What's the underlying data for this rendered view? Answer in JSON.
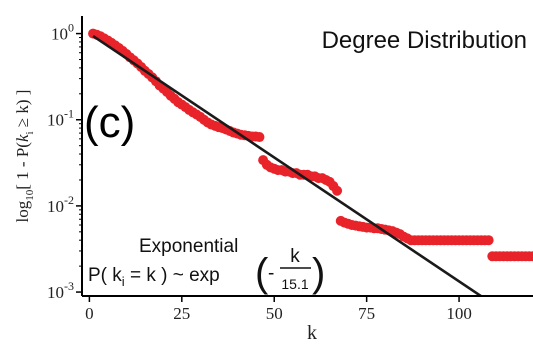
{
  "chart_data": {
    "type": "scatter",
    "title": "Degree Distribution",
    "panel_label": "(c)",
    "xlabel": "k",
    "ylabel": "log10[ 1 - P( ki ≥ k) ]",
    "ylabel_parts": {
      "log": "log",
      "log_sub": "10",
      "open": "[ 1 -  P(",
      "k": "k",
      "k_sub": "i",
      "rest": " ≥ k) ]"
    },
    "x_ticks": [
      0,
      25,
      50,
      75,
      100
    ],
    "y_ticks": [
      {
        "value": 1,
        "base": "10",
        "exp": "0"
      },
      {
        "value": 0.1,
        "base": "10",
        "exp": "-1"
      },
      {
        "value": 0.01,
        "base": "10",
        "exp": "-2"
      },
      {
        "value": 0.001,
        "base": "10",
        "exp": "-3"
      }
    ],
    "xlim": [
      -2,
      120
    ],
    "ylim": [
      0.0009,
      1.6
    ],
    "y_scale": "log",
    "grid": false,
    "marker_color": "#e8232a",
    "fit_color": "#1a1a1a",
    "annotation": {
      "heading": "Exponential",
      "lhs": "P( k",
      "lhs_sub": "i",
      "rhs": " = k ) ~ exp",
      "minus": "-",
      "numerator": "k",
      "denominator": "15.1"
    },
    "fit": {
      "label": "exp(-k/15.1)",
      "scale": 15.1,
      "x_range": [
        1,
        120
      ]
    },
    "series": [
      {
        "points": [
          [
            1,
            1.0
          ],
          [
            2,
            0.97
          ],
          [
            3,
            0.93
          ],
          [
            4,
            0.88
          ],
          [
            5,
            0.83
          ],
          [
            6,
            0.78
          ],
          [
            7,
            0.73
          ],
          [
            8,
            0.68
          ],
          [
            9,
            0.63
          ],
          [
            10,
            0.58
          ],
          [
            11,
            0.53
          ],
          [
            12,
            0.49
          ],
          [
            13,
            0.45
          ],
          [
            14,
            0.41
          ],
          [
            15,
            0.37
          ],
          [
            16,
            0.34
          ],
          [
            17,
            0.31
          ],
          [
            18,
            0.28
          ],
          [
            19,
            0.25
          ],
          [
            20,
            0.23
          ],
          [
            21,
            0.21
          ],
          [
            22,
            0.19
          ],
          [
            23,
            0.175
          ],
          [
            24,
            0.16
          ],
          [
            25,
            0.15
          ],
          [
            26,
            0.14
          ],
          [
            27,
            0.13
          ],
          [
            28,
            0.122
          ],
          [
            29,
            0.115
          ],
          [
            30,
            0.108
          ],
          [
            31,
            0.1
          ],
          [
            32,
            0.093
          ],
          [
            33,
            0.088
          ],
          [
            34,
            0.085
          ],
          [
            35,
            0.082
          ],
          [
            36,
            0.08
          ],
          [
            37,
            0.077
          ],
          [
            38,
            0.074
          ],
          [
            39,
            0.071
          ],
          [
            40,
            0.069
          ],
          [
            41,
            0.067
          ],
          [
            42,
            0.066
          ],
          [
            43,
            0.065
          ],
          [
            44,
            0.064
          ],
          [
            45,
            0.064
          ],
          [
            46,
            0.063
          ],
          [
            47,
            0.034
          ],
          [
            48,
            0.03
          ],
          [
            49,
            0.028
          ],
          [
            50,
            0.027
          ],
          [
            51,
            0.026
          ],
          [
            52,
            0.026
          ],
          [
            53,
            0.025
          ],
          [
            54,
            0.025
          ],
          [
            55,
            0.024
          ],
          [
            56,
            0.024
          ],
          [
            57,
            0.023
          ],
          [
            58,
            0.023
          ],
          [
            59,
            0.023
          ],
          [
            60,
            0.022
          ],
          [
            61,
            0.022
          ],
          [
            62,
            0.021
          ],
          [
            63,
            0.021
          ],
          [
            64,
            0.02
          ],
          [
            65,
            0.019
          ],
          [
            66,
            0.017
          ],
          [
            67,
            0.015
          ],
          [
            68,
            0.0067
          ],
          [
            69,
            0.0064
          ],
          [
            70,
            0.0062
          ],
          [
            71,
            0.006
          ],
          [
            72,
            0.0059
          ],
          [
            73,
            0.0058
          ],
          [
            74,
            0.0057
          ],
          [
            75,
            0.0056
          ],
          [
            76,
            0.0056
          ],
          [
            77,
            0.0055
          ],
          [
            78,
            0.0055
          ],
          [
            79,
            0.0054
          ],
          [
            80,
            0.0053
          ],
          [
            81,
            0.0052
          ],
          [
            82,
            0.0051
          ],
          [
            83,
            0.0049
          ],
          [
            84,
            0.0047
          ],
          [
            85,
            0.0044
          ],
          [
            86,
            0.0042
          ],
          [
            87,
            0.004
          ],
          [
            88,
            0.004
          ],
          [
            89,
            0.004
          ],
          [
            90,
            0.004
          ],
          [
            91,
            0.004
          ],
          [
            92,
            0.004
          ],
          [
            93,
            0.004
          ],
          [
            94,
            0.004
          ],
          [
            95,
            0.004
          ],
          [
            96,
            0.004
          ],
          [
            97,
            0.004
          ],
          [
            98,
            0.004
          ],
          [
            99,
            0.004
          ],
          [
            100,
            0.004
          ],
          [
            101,
            0.004
          ],
          [
            102,
            0.004
          ],
          [
            103,
            0.004
          ],
          [
            104,
            0.004
          ],
          [
            105,
            0.004
          ],
          [
            106,
            0.004
          ],
          [
            107,
            0.004
          ],
          [
            108,
            0.004
          ],
          [
            109,
            0.0026
          ],
          [
            110,
            0.0026
          ],
          [
            111,
            0.0026
          ],
          [
            112,
            0.0026
          ],
          [
            113,
            0.0026
          ],
          [
            114,
            0.0026
          ],
          [
            115,
            0.0026
          ],
          [
            116,
            0.0026
          ],
          [
            117,
            0.0026
          ],
          [
            118,
            0.0026
          ],
          [
            119,
            0.0026
          ],
          [
            120,
            0.0026
          ]
        ]
      }
    ]
  }
}
